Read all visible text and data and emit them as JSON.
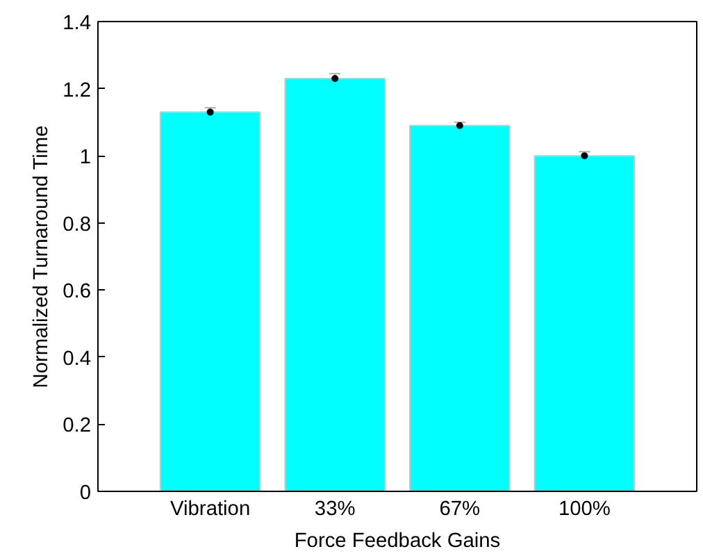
{
  "chart_data": {
    "type": "bar",
    "xlabel": "Force Feedback Gains",
    "ylabel": "Normalized Turnaround Time",
    "categories": [
      "Vibration",
      "33%",
      "67%",
      "100%"
    ],
    "series": [
      {
        "color": "#00ffff",
        "values": [
          1.13,
          1.23,
          1.09,
          1.0
        ],
        "errors": [
          0.013,
          0.015,
          0.01,
          0.012
        ]
      },
      {
        "type": "scatter",
        "color": "#000000",
        "marker": "circle",
        "x": [
          "Vibration",
          "33%",
          "67%",
          "100%"
        ],
        "values": [
          1.13,
          1.23,
          1.09,
          1.0
        ]
      }
    ],
    "ylim": [
      0,
      1.4
    ],
    "yticks": [
      0,
      0.2,
      0.4,
      0.6,
      0.8,
      1,
      1.2,
      1.4
    ],
    "grid": false
  }
}
